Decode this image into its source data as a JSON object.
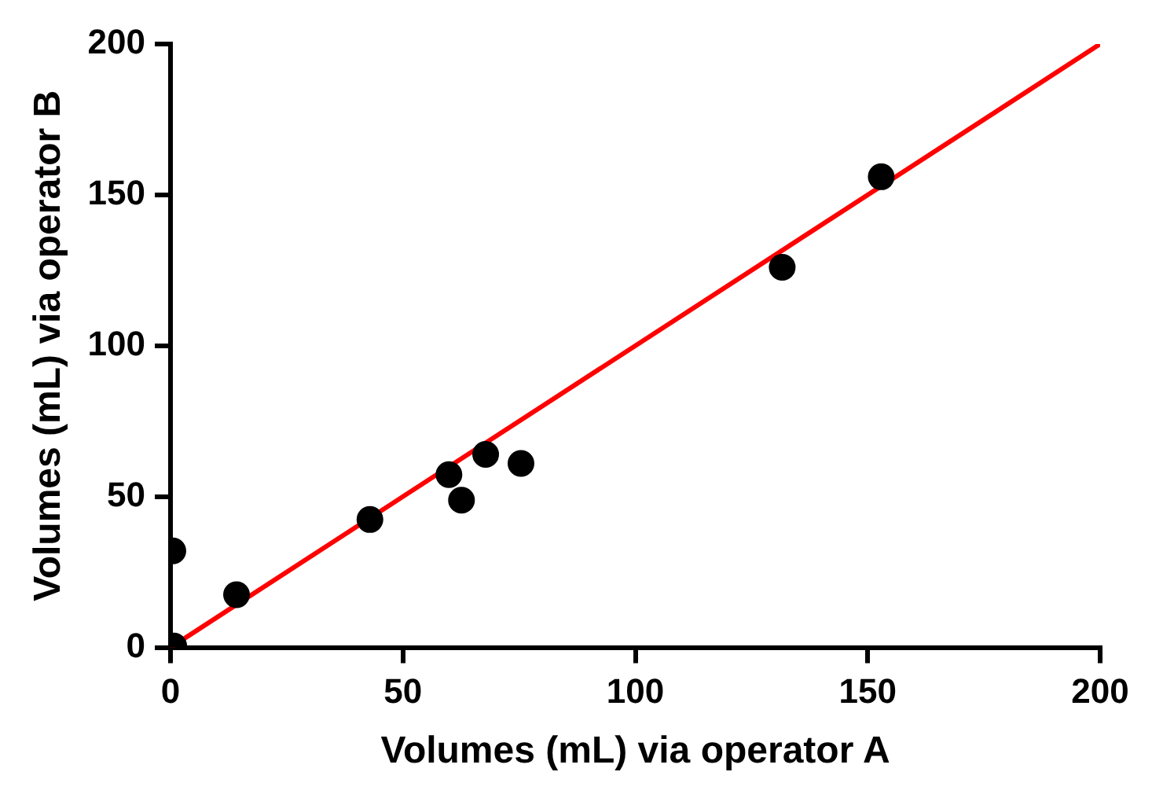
{
  "chart_data": {
    "type": "scatter",
    "xlabel": "Volumes (mL) via operator A",
    "ylabel": "Volumes (mL) via operator B",
    "xlim": [
      0,
      200
    ],
    "ylim": [
      0,
      200
    ],
    "xticks": [
      0,
      50,
      100,
      150,
      200
    ],
    "yticks": [
      0,
      50,
      100,
      150,
      200
    ],
    "grid": false,
    "legend": false,
    "marker": "circle",
    "series": [
      {
        "color": "#000000",
        "x": [
          0.5,
          0.7,
          14.2,
          42.9,
          59.9,
          62.6,
          67.8,
          75.4,
          131.6,
          152.9
        ],
        "values": [
          32,
          0.5,
          17.5,
          42.4,
          57.3,
          48.8,
          64,
          61,
          126,
          156
        ]
      },
      {
        "type": "line",
        "color": "#ff0000",
        "x": [
          0,
          200
        ],
        "values": [
          0,
          200
        ],
        "marker": "none",
        "line_style": "solid"
      }
    ]
  }
}
